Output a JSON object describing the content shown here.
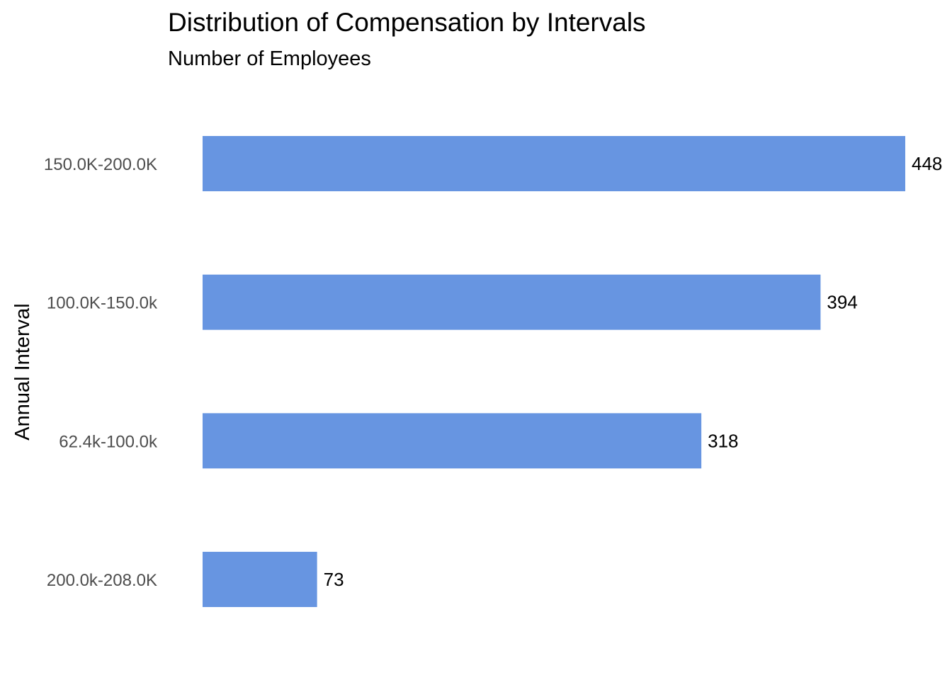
{
  "chart_data": {
    "type": "bar",
    "orientation": "horizontal",
    "title": "Distribution of Compensation by Intervals",
    "subtitle": "Number of Employees",
    "xlabel": "",
    "ylabel": "Annual Interval",
    "categories": [
      "150.0K-200.0K",
      "100.0K-150.0k",
      "62.4k-100.0k",
      "200.0k-208.0K"
    ],
    "values": [
      448,
      394,
      318,
      73
    ],
    "data_labels": [
      "448",
      "394",
      "318",
      "73"
    ],
    "xlim": [
      0,
      448
    ],
    "grid": false,
    "legend": "none",
    "bar_color": "#6795e1"
  }
}
